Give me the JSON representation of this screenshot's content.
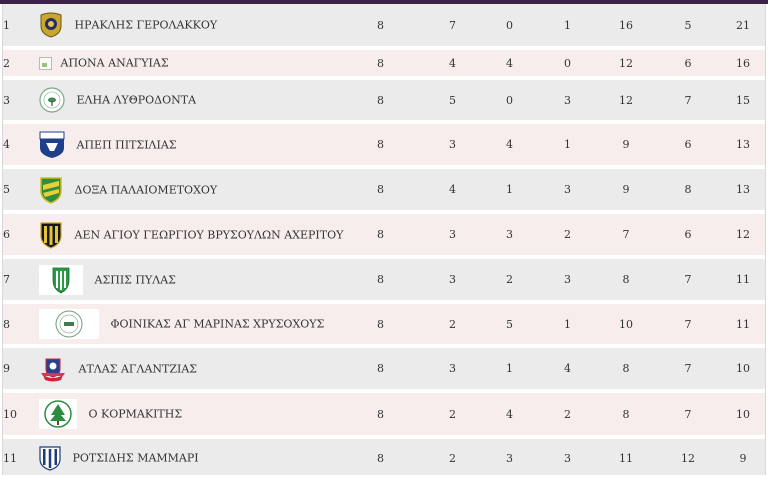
{
  "colors": {
    "topbar": "#3d1f4a",
    "row_odd": "#ebebeb",
    "row_even": "#f7eded"
  },
  "standings": [
    {
      "pos": "1",
      "team": "ΗΡΑΚΛΗΣ ΓΕΡΟΛΑΚΚΟΥ",
      "logo": "herakles-crest-icon",
      "played": "8",
      "w": "7",
      "d": "0",
      "l": "1",
      "gf": "16",
      "ga": "5",
      "pts": "21"
    },
    {
      "pos": "2",
      "team": "ΑΠΟΝΑ ΑΝΑΓΥΙΑΣ",
      "logo": "broken-image-icon",
      "played": "8",
      "w": "4",
      "d": "4",
      "l": "0",
      "gf": "12",
      "ga": "6",
      "pts": "16"
    },
    {
      "pos": "3",
      "team": "ΕΛΗΑ ΛΥΘΡΟΔΟΝΤΑ",
      "logo": "eleia-badge-icon",
      "played": "8",
      "w": "5",
      "d": "0",
      "l": "3",
      "gf": "12",
      "ga": "7",
      "pts": "15"
    },
    {
      "pos": "4",
      "team": "ΑΠΕΠ ΠΙΤΣΙΛΙΑΣ",
      "logo": "apep-shield-icon",
      "played": "8",
      "w": "3",
      "d": "4",
      "l": "1",
      "gf": "9",
      "ga": "6",
      "pts": "13"
    },
    {
      "pos": "5",
      "team": "ΔΟΞΑ ΠΑΛΑΙΟΜΕΤΟΧΟΥ",
      "logo": "doxa-crest-icon",
      "played": "8",
      "w": "4",
      "d": "1",
      "l": "3",
      "gf": "9",
      "ga": "8",
      "pts": "13"
    },
    {
      "pos": "6",
      "team": "ΑΕΝ ΑΓΙΟΥ ΓΕΩΡΓΙΟΥ ΒΡΥΣΟΥΛΩΝ ΑΧΕΡΙΤΟΥ",
      "logo": "aen-shield-icon",
      "played": "8",
      "w": "3",
      "d": "3",
      "l": "2",
      "gf": "7",
      "ga": "6",
      "pts": "12"
    },
    {
      "pos": "7",
      "team": "ΑΣΠΙΣ ΠΥΛΑΣ",
      "logo": "aspis-shield-icon",
      "played": "8",
      "w": "3",
      "d": "2",
      "l": "3",
      "gf": "8",
      "ga": "7",
      "pts": "11"
    },
    {
      "pos": "8",
      "team": "ΦΟΙΝΙΚΑΣ ΑΓ ΜΑΡΙΝΑΣ ΧΡΥΣΟΧΟΥΣ",
      "logo": "foinikas-seal-icon",
      "played": "8",
      "w": "2",
      "d": "5",
      "l": "1",
      "gf": "10",
      "ga": "7",
      "pts": "11"
    },
    {
      "pos": "9",
      "team": "ΑΤΛΑΣ ΑΓΛΑΝΤΖΙΑΣ",
      "logo": "atlas-crest-icon",
      "played": "8",
      "w": "3",
      "d": "1",
      "l": "4",
      "gf": "8",
      "ga": "7",
      "pts": "10"
    },
    {
      "pos": "10",
      "team": "Ο ΚΟΡΜΑΚΙΤΗΣ",
      "logo": "kormakitis-tree-icon",
      "played": "8",
      "w": "2",
      "d": "4",
      "l": "2",
      "gf": "8",
      "ga": "7",
      "pts": "10"
    },
    {
      "pos": "11",
      "team": "ΡΟΤΣΙΔΗΣ ΜΑΜΜΑΡΙ",
      "logo": "rotsidis-shield-icon",
      "played": "8",
      "w": "2",
      "d": "3",
      "l": "3",
      "gf": "11",
      "ga": "12",
      "pts": "9"
    }
  ]
}
